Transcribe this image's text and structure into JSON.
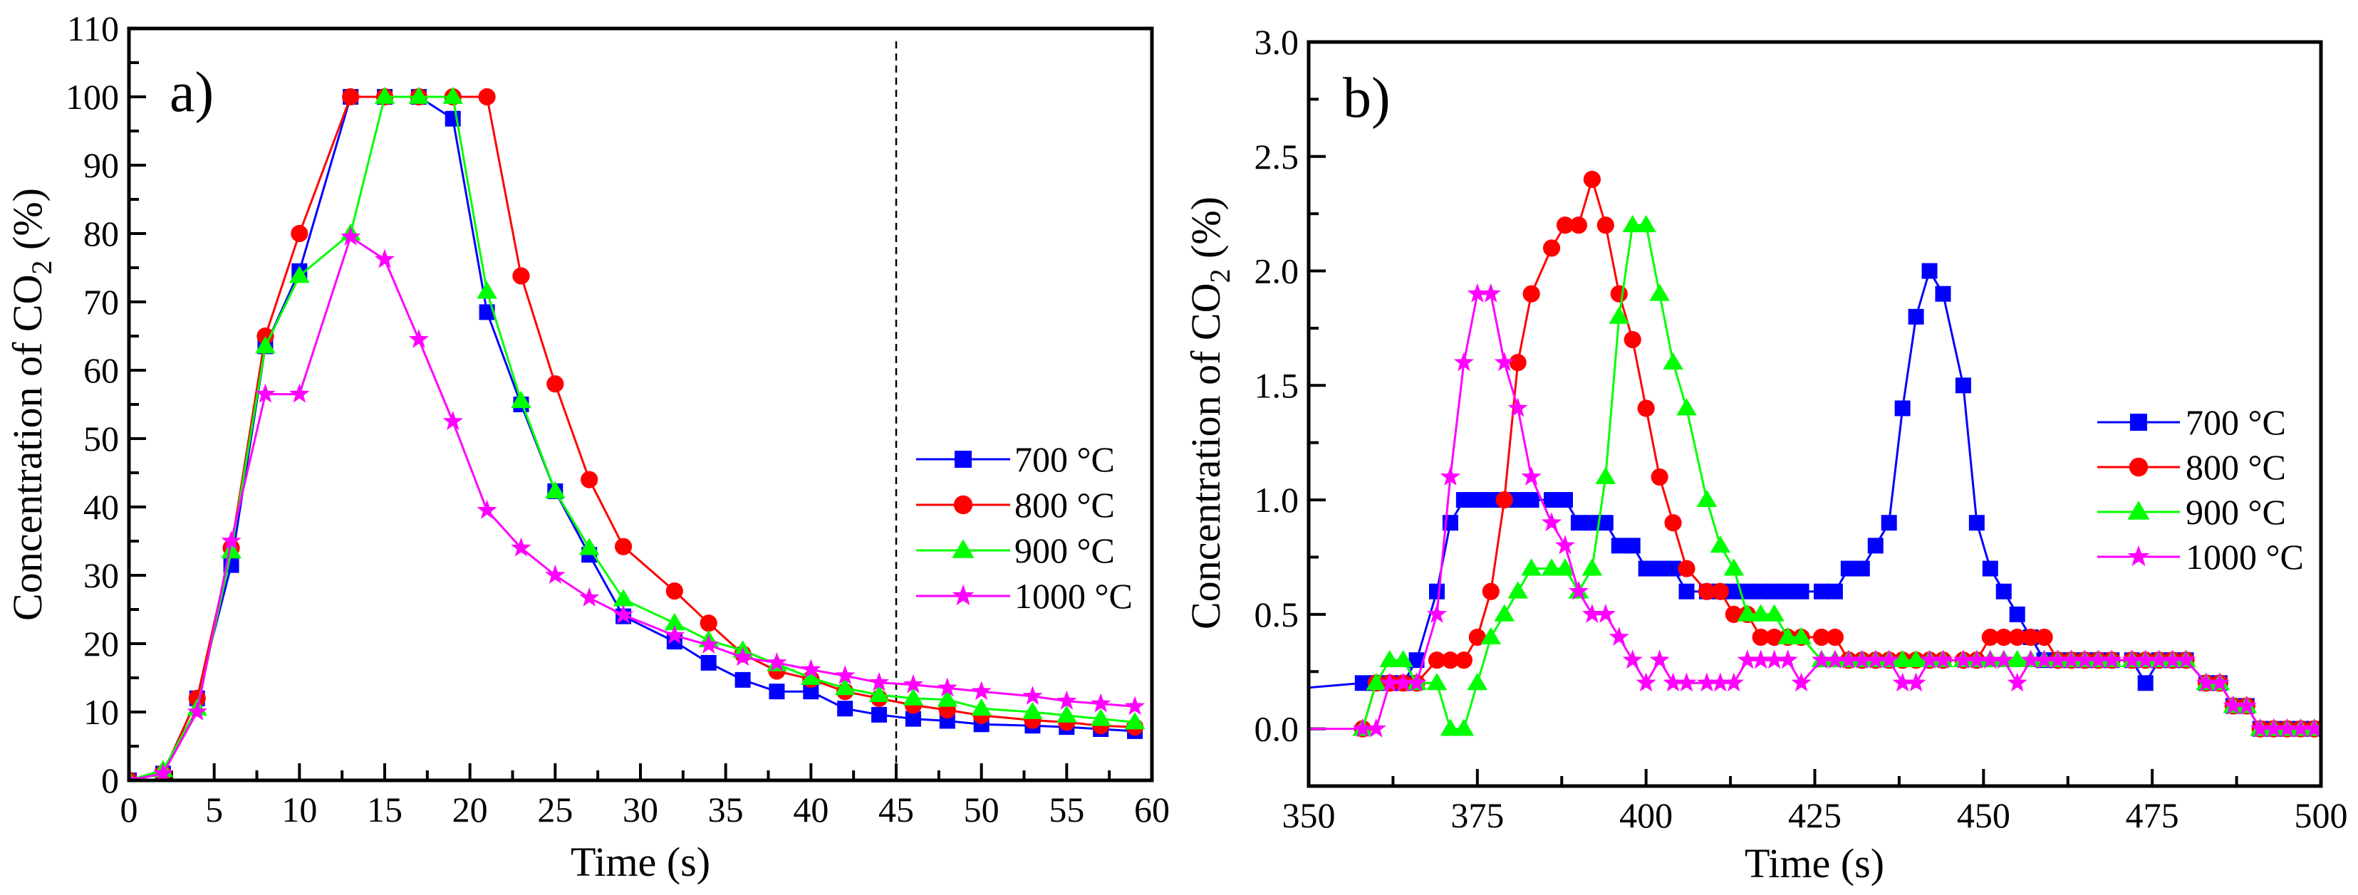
{
  "chart_data": [
    {
      "id": "a",
      "type": "line",
      "panel_label": "a)",
      "xlabel": "Time (s)",
      "ylabel_parts": [
        "Concentration of CO",
        "2",
        " (%)"
      ],
      "xlim": [
        0,
        60
      ],
      "ylim": [
        0,
        110
      ],
      "xticks": [
        0,
        5,
        10,
        15,
        20,
        25,
        30,
        35,
        40,
        45,
        50,
        55,
        60
      ],
      "yticks": [
        0,
        10,
        20,
        30,
        40,
        50,
        60,
        70,
        80,
        90,
        100,
        110
      ],
      "vline_dashed_at": 45,
      "legend_position": "center-right",
      "x": [
        0,
        2,
        4,
        6,
        8,
        10,
        13,
        15,
        17,
        19,
        21,
        23,
        25,
        27,
        29,
        32,
        34,
        36,
        38,
        40,
        42,
        44,
        46,
        48,
        50,
        53,
        55,
        57,
        59
      ],
      "series": [
        {
          "name": "700 °C",
          "color": "#0000FF",
          "marker": "square",
          "values": [
            0,
            1,
            12,
            31.5,
            63.5,
            74.5,
            100,
            100,
            100,
            96.8,
            68.5,
            55,
            42.3,
            33,
            24,
            20.3,
            17.2,
            14.7,
            13,
            13,
            10.5,
            9.6,
            9,
            8.7,
            8.2,
            8,
            7.8,
            7.5,
            7.2
          ]
        },
        {
          "name": "800 °C",
          "color": "#FF0000",
          "marker": "circle",
          "values": [
            0,
            1,
            12,
            34,
            65,
            80,
            100,
            100,
            100,
            100,
            100,
            73.8,
            58,
            44,
            34.2,
            27.7,
            23,
            18.5,
            16,
            14.8,
            13,
            12,
            11,
            10.3,
            9.5,
            8.8,
            8.5,
            8,
            7.8
          ]
        },
        {
          "name": "900 °C",
          "color": "#00FF00",
          "marker": "triangle",
          "values": [
            0,
            1.5,
            10.5,
            33.5,
            63.5,
            73.8,
            80,
            100,
            100,
            100,
            71.5,
            55.5,
            42.3,
            34,
            26.5,
            23,
            20.5,
            19,
            17,
            15,
            13.5,
            12.5,
            12,
            11.8,
            10.5,
            10,
            9.5,
            9,
            8.5
          ]
        },
        {
          "name": "1000 °C",
          "color": "#FF00FF",
          "marker": "star",
          "values": [
            0,
            1,
            10,
            35,
            56.5,
            56.5,
            79.5,
            76.2,
            64.5,
            52.5,
            39.5,
            34,
            30,
            26.7,
            24.2,
            21.2,
            19.8,
            18,
            17.2,
            16.2,
            15.3,
            14.3,
            14,
            13.5,
            13,
            12.3,
            11.6,
            11.2,
            10.8
          ]
        }
      ]
    },
    {
      "id": "b",
      "type": "line",
      "panel_label": "b)",
      "xlabel": "Time (s)",
      "ylabel_parts": [
        "Concentration of CO",
        "2",
        " (%)"
      ],
      "xlim": [
        350,
        500
      ],
      "ylim": [
        -0.25,
        3.0
      ],
      "xticks": [
        350,
        375,
        400,
        425,
        450,
        475,
        500
      ],
      "yticks": [
        0.0,
        0.5,
        1.0,
        1.5,
        2.0,
        2.5,
        3.0
      ],
      "ytick_labels": [
        "0.0",
        "0.5",
        "1.0",
        "1.5",
        "2.0",
        "2.5",
        "3.0"
      ],
      "legend_position": "center-right",
      "x": [
        358,
        360,
        362,
        364,
        366,
        369,
        371,
        373,
        375,
        377,
        379,
        381,
        383,
        386,
        388,
        390,
        392,
        394,
        396,
        398,
        400,
        402,
        404,
        406,
        409,
        411,
        413,
        415,
        417,
        419,
        421,
        423,
        426,
        428,
        430,
        432,
        434,
        436,
        438,
        440,
        442,
        444,
        447,
        449,
        451,
        453,
        455,
        457,
        459,
        461,
        463,
        465,
        467,
        469,
        472,
        474,
        476,
        478,
        480,
        483,
        485,
        487,
        489,
        491,
        493,
        495,
        497,
        499
      ],
      "series": [
        {
          "name": "700 °C",
          "color": "#0000FF",
          "marker": "square",
          "lead_in": [
            350,
            0.18
          ],
          "values": [
            0.2,
            0.2,
            0.2,
            0.2,
            0.3,
            0.6,
            0.9,
            1.0,
            1.0,
            1.0,
            1.0,
            1.0,
            1.0,
            1.0,
            1.0,
            0.9,
            0.9,
            0.9,
            0.8,
            0.8,
            0.7,
            0.7,
            0.7,
            0.6,
            0.6,
            0.6,
            0.6,
            0.6,
            0.6,
            0.6,
            0.6,
            0.6,
            0.6,
            0.6,
            0.7,
            0.7,
            0.8,
            0.9,
            1.4,
            1.8,
            2.0,
            1.9,
            1.5,
            0.9,
            0.7,
            0.6,
            0.5,
            0.4,
            0.3,
            0.3,
            0.3,
            0.3,
            0.3,
            0.3,
            0.3,
            0.2,
            0.3,
            0.3,
            0.3,
            0.2,
            0.2,
            0.1,
            0.1,
            0,
            0,
            0,
            0,
            0
          ]
        },
        {
          "name": "800 °C",
          "color": "#FF0000",
          "marker": "circle",
          "values": [
            0,
            0.2,
            0.2,
            0.2,
            0.2,
            0.3,
            0.3,
            0.3,
            0.4,
            0.6,
            1.0,
            1.6,
            1.9,
            2.1,
            2.2,
            2.2,
            2.4,
            2.2,
            1.9,
            1.7,
            1.4,
            1.1,
            0.9,
            0.7,
            0.6,
            0.6,
            0.5,
            0.5,
            0.4,
            0.4,
            0.4,
            0.4,
            0.4,
            0.4,
            0.3,
            0.3,
            0.3,
            0.3,
            0.3,
            0.3,
            0.3,
            0.3,
            0.3,
            0.3,
            0.4,
            0.4,
            0.4,
            0.4,
            0.4,
            0.3,
            0.3,
            0.3,
            0.3,
            0.3,
            0.3,
            0.3,
            0.3,
            0.3,
            0.3,
            0.2,
            0.2,
            0.1,
            0.1,
            0,
            0,
            0,
            0,
            0
          ]
        },
        {
          "name": "900 °C",
          "color": "#00FF00",
          "marker": "triangle",
          "values": [
            0,
            0.2,
            0.3,
            0.3,
            0.2,
            0.2,
            0,
            0,
            0.2,
            0.4,
            0.5,
            0.6,
            0.7,
            0.7,
            0.7,
            0.6,
            0.7,
            1.1,
            1.8,
            2.2,
            2.2,
            1.9,
            1.6,
            1.4,
            1.0,
            0.8,
            0.7,
            0.5,
            0.5,
            0.5,
            0.4,
            0.4,
            0.3,
            0.3,
            0.3,
            0.3,
            0.3,
            0.3,
            0.3,
            0.3,
            0.3,
            0.3,
            0.3,
            0.3,
            0.3,
            0.3,
            0.3,
            0.3,
            0.3,
            0.3,
            0.3,
            0.3,
            0.3,
            0.3,
            0.3,
            0.3,
            0.3,
            0.3,
            0.3,
            0.2,
            0.2,
            0.1,
            0.1,
            0,
            0,
            0,
            0,
            0
          ]
        },
        {
          "name": "1000 °C",
          "color": "#FF00FF",
          "marker": "star",
          "lead_in": [
            350,
            0
          ],
          "values": [
            0,
            0,
            0.2,
            0.2,
            0.2,
            0.5,
            1.1,
            1.6,
            1.9,
            1.9,
            1.6,
            1.4,
            1.1,
            0.9,
            0.8,
            0.6,
            0.5,
            0.5,
            0.4,
            0.3,
            0.2,
            0.3,
            0.2,
            0.2,
            0.2,
            0.2,
            0.2,
            0.3,
            0.3,
            0.3,
            0.3,
            0.2,
            0.3,
            0.3,
            0.3,
            0.3,
            0.3,
            0.3,
            0.2,
            0.2,
            0.3,
            0.3,
            0.3,
            0.3,
            0.3,
            0.3,
            0.2,
            0.3,
            0.3,
            0.3,
            0.3,
            0.3,
            0.3,
            0.3,
            0.3,
            0.3,
            0.3,
            0.3,
            0.3,
            0.2,
            0.2,
            0.1,
            0.1,
            0,
            0,
            0,
            0,
            0
          ]
        }
      ]
    }
  ]
}
